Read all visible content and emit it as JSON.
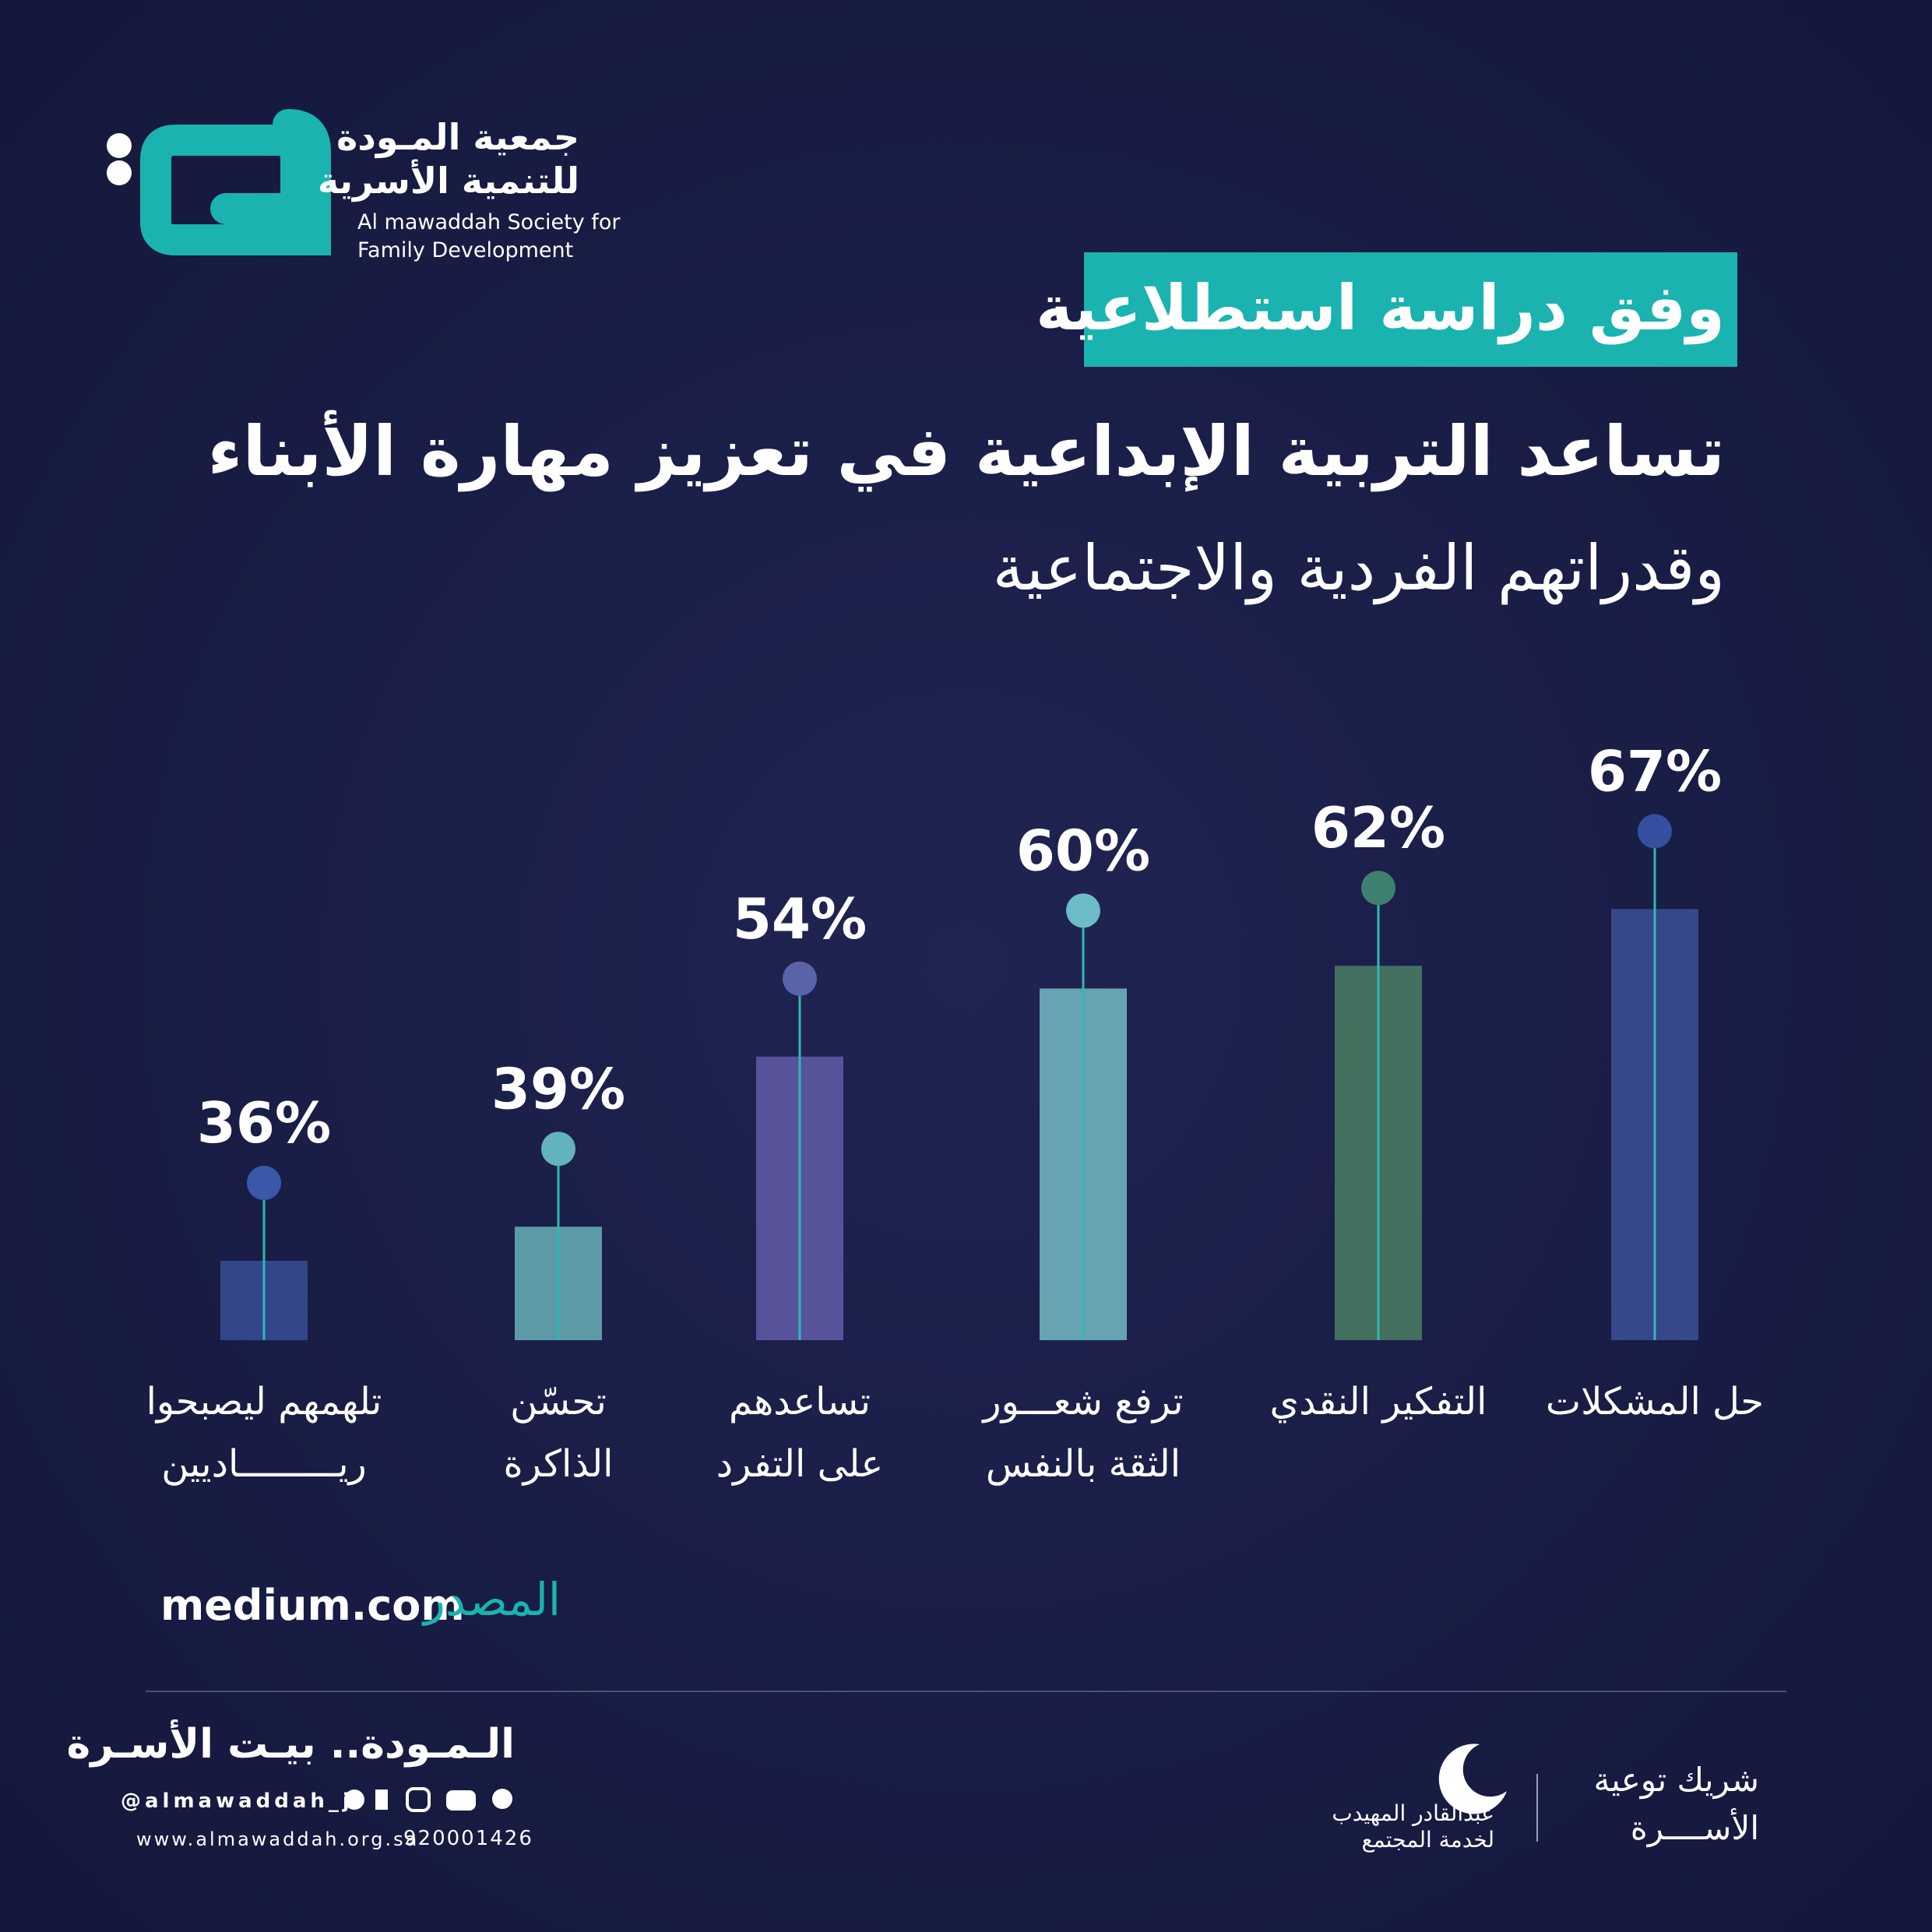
{
  "header": {
    "org_name_ar": "جمعية المـودة\nللتنمية الأسرية",
    "org_name_en": "Al mawaddah Society for\nFamily Development",
    "badge": "وفق دراسة استطلاعية"
  },
  "chart_data": {
    "type": "bar",
    "title": "تساعد التربية الإبداعية في تعزيز مهارة الأبناء",
    "subtitle": "وقدراتهم الفردية والاجتماعية",
    "categories": [
      "تلهمهم ليصبحوا\nريـــــــــاديين",
      "تحسّن\nالذاكرة",
      "تساعدهم\nعلى التفرد",
      "ترفع شعـــور\nالثقة بالنفس",
      "التفكير النقدي",
      "حل المشكلات"
    ],
    "values": [
      36,
      39,
      54,
      60,
      62,
      67
    ],
    "value_labels": [
      "36%",
      "39%",
      "54%",
      "60%",
      "62%",
      "67%"
    ],
    "colors": [
      "#34468a",
      "#5e9aa6",
      "#56539a",
      "#68a3b3",
      "#44705f",
      "#36478a"
    ],
    "dot_colors": [
      "#3a58a8",
      "#63b3be",
      "#5a62a8",
      "#6bbcc8",
      "#3f8070",
      "#34509e"
    ],
    "ylim": [
      29,
      80
    ]
  },
  "source": {
    "label": "المصدر",
    "name": "medium.com"
  },
  "footer": {
    "slogan": "الـمـودة.. بيـت الأسـرة",
    "handle": "@almawaddah_j",
    "website": "www.almawaddah.org.sa",
    "phone": "920001426",
    "partner_name": "عبدالقادر المهيدب\nلخدمة المجتمع",
    "partner_title": "شريك توعية\nالأســــرة"
  }
}
